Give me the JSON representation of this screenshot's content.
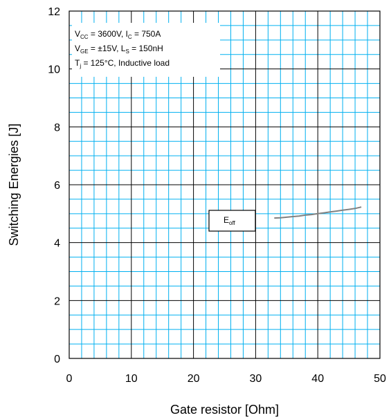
{
  "chart_data": {
    "type": "line",
    "title": "",
    "xlabel": "Gate resistor [Ohm]",
    "ylabel": "Switching Energies [J]",
    "xlim": [
      0,
      50
    ],
    "ylim": [
      0,
      12
    ],
    "x_ticks": [
      "0",
      "10",
      "20",
      "30",
      "40",
      "50"
    ],
    "y_ticks": [
      "0",
      "2",
      "4",
      "6",
      "8",
      "10",
      "12"
    ],
    "grid": {
      "major": true,
      "minor": true,
      "major_color": "#000000",
      "minor_color": "#00b0f0"
    },
    "legend_position": "center-right",
    "annotation": {
      "lines": [
        [
          {
            "t": "V"
          },
          {
            "t": "CC",
            "sub": true
          },
          {
            "t": " = 3600V, I"
          },
          {
            "t": "C",
            "sub": true
          },
          {
            "t": " = 750A"
          }
        ],
        [
          {
            "t": "V"
          },
          {
            "t": "GE",
            "sub": true
          },
          {
            "t": " = ±15V, L"
          },
          {
            "t": "S",
            "sub": true
          },
          {
            "t": " = 150nH"
          }
        ],
        [
          {
            "t": "T"
          },
          {
            "t": "j",
            "sub": true
          },
          {
            "t": " = 125°C, Inductive load"
          }
        ]
      ]
    },
    "series": [
      {
        "label_main": "E",
        "label_sub": "off",
        "color": "#808080",
        "x": [
          33,
          34,
          35,
          36,
          37,
          38,
          39,
          40,
          41,
          42,
          43,
          44,
          45,
          46,
          47
        ],
        "y": [
          4.85,
          4.86,
          4.88,
          4.9,
          4.92,
          4.95,
          4.97,
          5.0,
          5.03,
          5.06,
          5.09,
          5.12,
          5.15,
          5.18,
          5.23
        ]
      }
    ]
  }
}
